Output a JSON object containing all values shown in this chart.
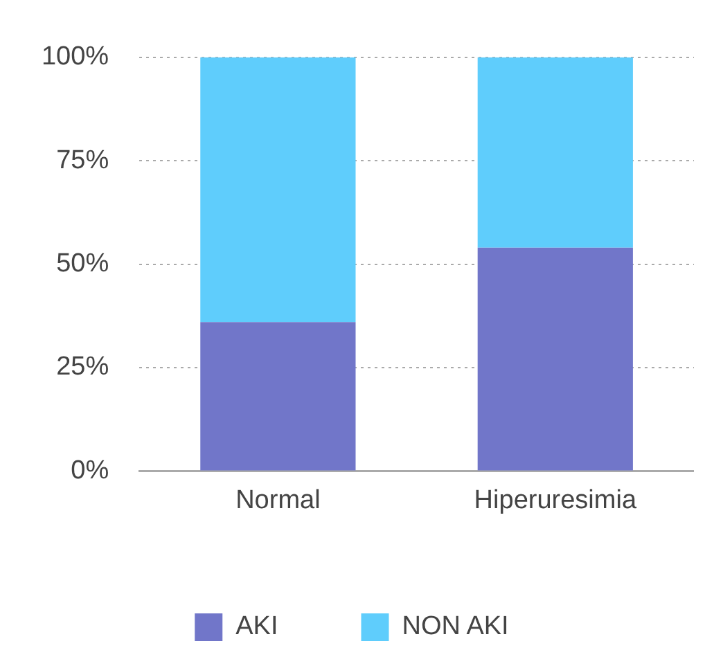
{
  "chart_data": {
    "type": "bar",
    "stacked": true,
    "categories": [
      "Normal",
      "Hiperuresimia"
    ],
    "series": [
      {
        "name": "AKI",
        "color": "#7176c9",
        "values": [
          36,
          54
        ]
      },
      {
        "name": "NON AKI",
        "color": "#5fcdfc",
        "values": [
          64,
          46
        ]
      }
    ],
    "ylim": [
      0,
      100
    ],
    "yticks": [
      {
        "value": 0,
        "label": "0%"
      },
      {
        "value": 25,
        "label": "25%"
      },
      {
        "value": 50,
        "label": "50%"
      },
      {
        "value": 75,
        "label": "75%"
      },
      {
        "value": 100,
        "label": "100%"
      }
    ],
    "grid": "y",
    "legend": "bottom"
  }
}
